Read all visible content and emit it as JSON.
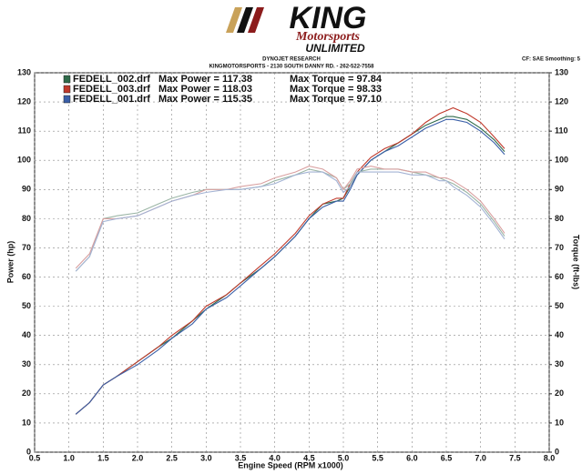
{
  "header": {
    "logo": "KING",
    "logo_sub": "Motorsports",
    "logo_sub2": "UNLIMITED",
    "company": "DYNOJET RESEARCH",
    "address": "KINGMOTORSPORTS - 2130 SOUTH DANNY RD. - 262-522-7558",
    "settings": "CF: SAE  Smoothing: 5"
  },
  "chart_data": {
    "type": "line",
    "xlabel": "Engine Speed (RPM x1000)",
    "ylabel": "Power (hp)",
    "y2label": "Torque (ft-lbs)",
    "x": [
      1.1,
      1.3,
      1.5,
      1.7,
      2.0,
      2.3,
      2.5,
      2.8,
      3.0,
      3.3,
      3.5,
      3.8,
      4.0,
      4.3,
      4.5,
      4.7,
      4.9,
      5.0,
      5.1,
      5.2,
      5.4,
      5.6,
      5.8,
      6.0,
      6.2,
      6.4,
      6.5,
      6.6,
      6.8,
      7.0,
      7.2,
      7.35
    ],
    "series": [
      {
        "name": "FEDELL_002.drf",
        "color": "#2f6b4a",
        "values": [
          13,
          17,
          23,
          26,
          31,
          36,
          39,
          45,
          49,
          54,
          58,
          63,
          67,
          74,
          80,
          85,
          86,
          87,
          91,
          95,
          100,
          103,
          106,
          109,
          112,
          114,
          115,
          115,
          114,
          111,
          107,
          103
        ]
      },
      {
        "name": "FEDELL_003.drf",
        "color": "#c0392b",
        "values": [
          13,
          17,
          23,
          26,
          31,
          36,
          40,
          45,
          50,
          54,
          58,
          64,
          68,
          75,
          81,
          85,
          87,
          87,
          92,
          96,
          101,
          104,
          106,
          109,
          113,
          116,
          117,
          118,
          116,
          113,
          108,
          104
        ]
      },
      {
        "name": "FEDELL_001.drf",
        "color": "#3a5fa8",
        "values": [
          13,
          17,
          23,
          26,
          30,
          35,
          39,
          44,
          49,
          53,
          57,
          63,
          67,
          74,
          80,
          84,
          86,
          86,
          90,
          95,
          100,
          103,
          105,
          108,
          111,
          113,
          114,
          114,
          113,
          110,
          106,
          102
        ]
      },
      {
        "color": "#9bb5a5",
        "axis": "y2",
        "values": [
          62,
          67,
          80,
          81,
          82,
          85,
          87,
          89,
          90,
          90,
          90,
          91,
          93,
          95,
          97,
          96,
          94,
          90,
          92,
          96,
          97,
          97,
          97,
          96,
          95,
          94,
          93,
          92,
          89,
          85,
          79,
          74
        ]
      },
      {
        "color": "#d9a0a0",
        "axis": "y2",
        "values": [
          63,
          68,
          80,
          80,
          81,
          84,
          86,
          88,
          90,
          90,
          91,
          92,
          94,
          96,
          98,
          97,
          94,
          90,
          93,
          97,
          98,
          97,
          97,
          96,
          96,
          94,
          94,
          93,
          90,
          86,
          80,
          75
        ]
      },
      {
        "color": "#a3b3d4",
        "axis": "y2",
        "values": [
          62,
          67,
          79,
          80,
          81,
          84,
          86,
          88,
          89,
          90,
          90,
          91,
          92,
          95,
          96,
          96,
          93,
          89,
          91,
          96,
          96,
          96,
          96,
          95,
          95,
          93,
          93,
          91,
          88,
          84,
          78,
          73
        ]
      }
    ],
    "max_power": [
      "Max Power = 117.38",
      "Max Power = 118.03",
      "Max Power = 115.35"
    ],
    "max_torque": [
      "Max Torque = 97.84",
      "Max Torque = 98.33",
      "Max Torque = 97.10"
    ],
    "xlim": [
      0.5,
      8.0
    ],
    "xticks": [
      0.5,
      {
        "value": 1,
        "label": "1.0"
      },
      1.5,
      {
        "value": 2,
        "label": "2.0"
      },
      2.5,
      {
        "value": 3,
        "label": "3.0"
      },
      3.5,
      {
        "value": 4,
        "label": "4.0"
      },
      4.5,
      {
        "value": 5,
        "label": "5.0"
      },
      5.5,
      {
        "value": 6,
        "label": "6.0"
      },
      6.5,
      {
        "value": 7,
        "label": "7.0"
      },
      7.5,
      {
        "value": 8,
        "label": "8.0"
      }
    ],
    "ylim": [
      0,
      130
    ],
    "yticks": [
      0,
      10,
      20,
      30,
      40,
      50,
      60,
      70,
      80,
      90,
      100,
      110,
      120,
      130
    ],
    "y2lim": [
      0,
      130
    ],
    "y2ticks": [
      0,
      10,
      20,
      30,
      40,
      50,
      60,
      70,
      80,
      90,
      100,
      110,
      120,
      130
    ],
    "grid": true
  }
}
